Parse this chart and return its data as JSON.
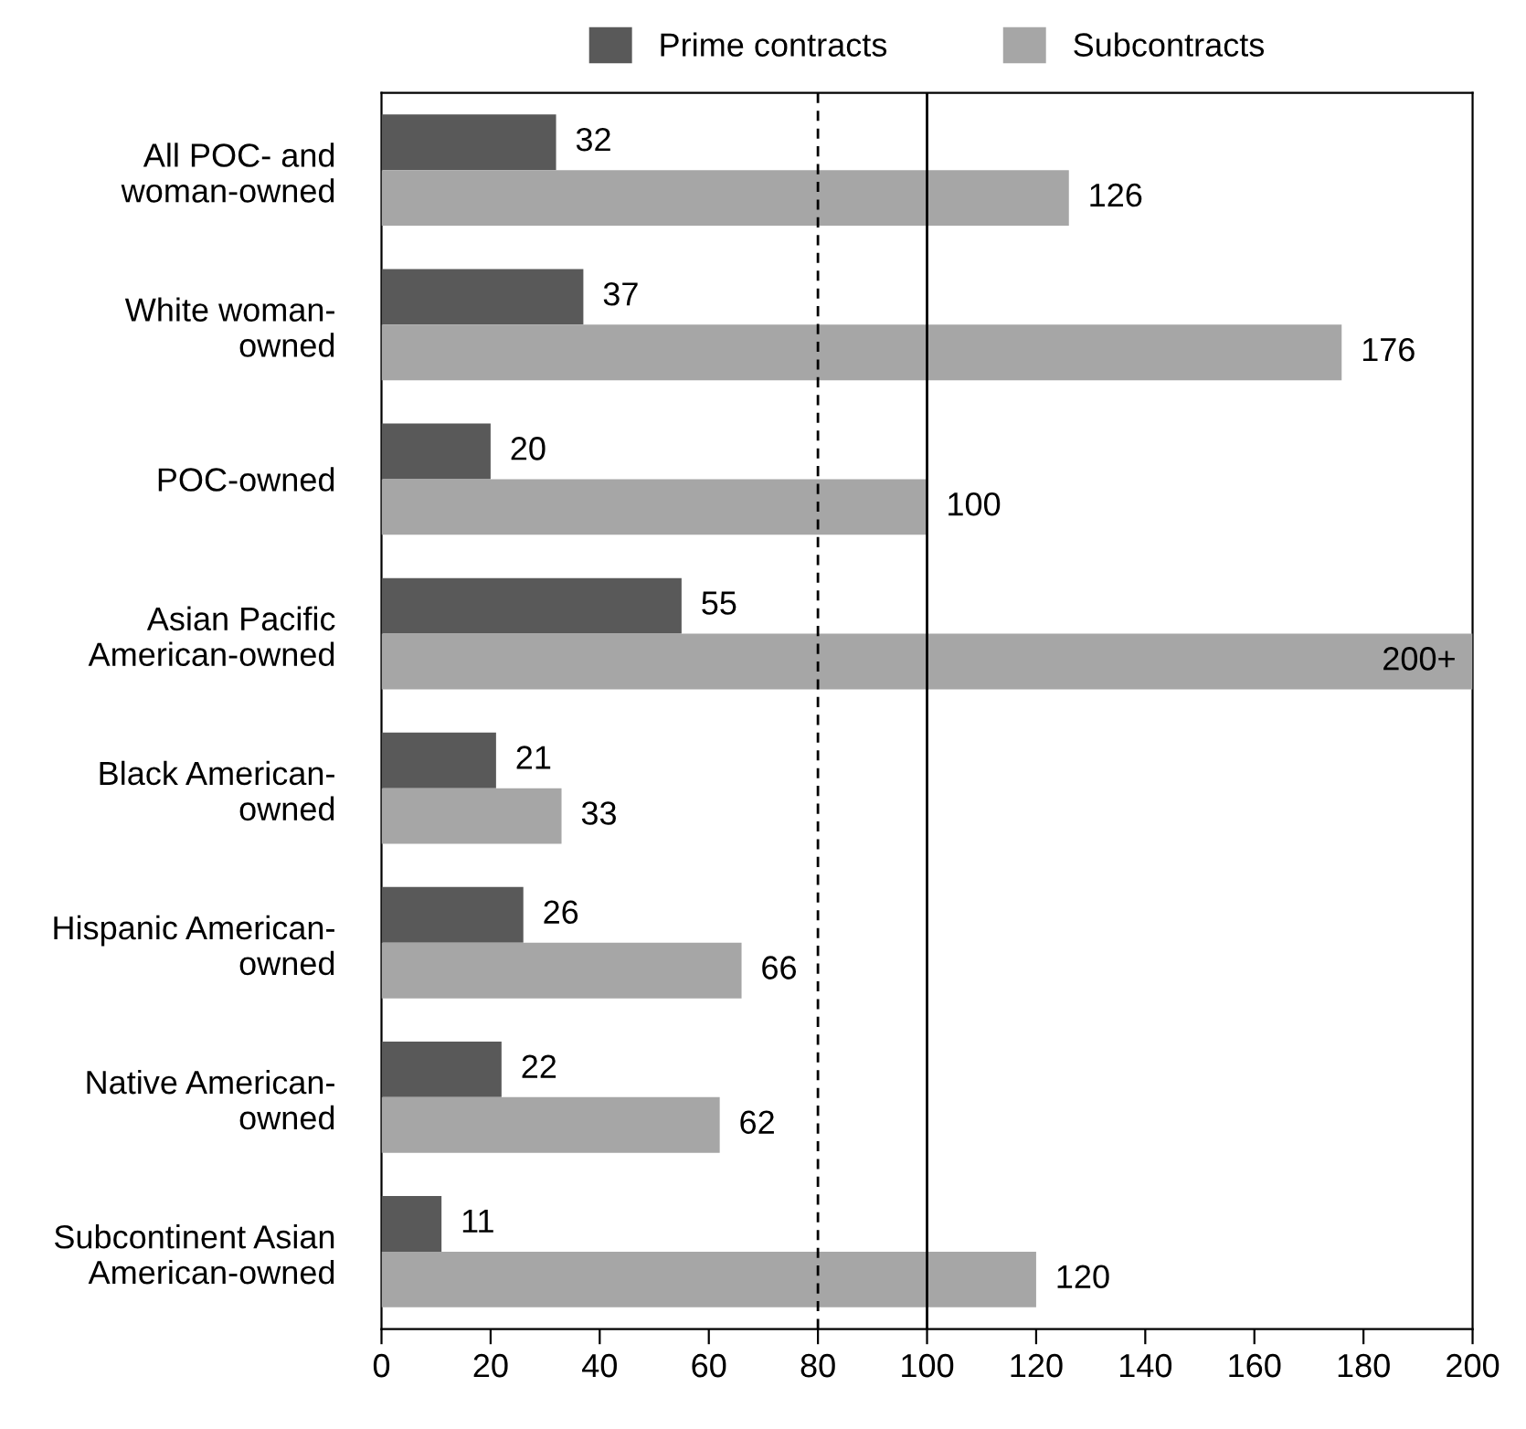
{
  "chart_data": {
    "type": "bar",
    "orientation": "horizontal",
    "categories": [
      "All POC- and\nwoman-owned",
      "White woman-\nowned",
      "POC-owned",
      "Asian Pacific\nAmerican-owned",
      "Black American-\nowned",
      "Hispanic American-\nowned",
      "Native American-\nowned",
      "Subcontinent Asian\nAmerican-owned"
    ],
    "series": [
      {
        "name": "Prime contracts",
        "color": "#595959",
        "values": [
          32,
          37,
          20,
          55,
          21,
          26,
          22,
          11
        ],
        "value_labels": [
          "32",
          "37",
          "20",
          "55",
          "21",
          "26",
          "22",
          "11"
        ]
      },
      {
        "name": "Subcontracts",
        "color": "#a6a6a6",
        "values": [
          126,
          176,
          100,
          200,
          33,
          66,
          62,
          120
        ],
        "value_labels": [
          "126",
          "176",
          "100",
          "200+",
          "33",
          "66",
          "62",
          "120"
        ]
      }
    ],
    "xlim": [
      0,
      200
    ],
    "xticks": [
      0,
      20,
      40,
      60,
      80,
      100,
      120,
      140,
      160,
      180,
      200
    ],
    "ref_lines": [
      {
        "axis": "x",
        "value": 80,
        "line_style": "dashed",
        "color": "#000000"
      },
      {
        "axis": "x",
        "value": 100,
        "line_style": "solid",
        "color": "#000000"
      }
    ],
    "grid": false,
    "legend": "top"
  }
}
